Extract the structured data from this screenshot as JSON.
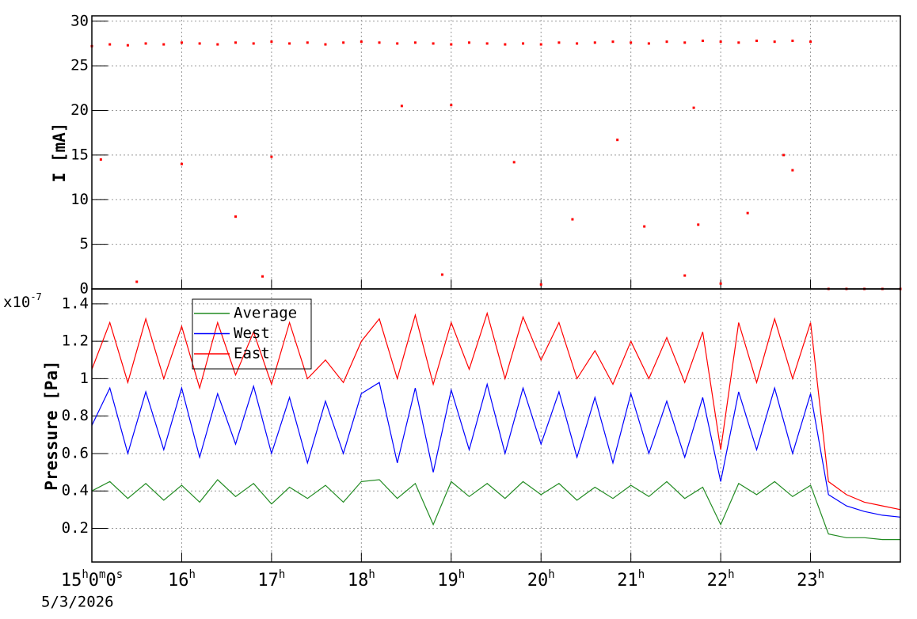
{
  "chart_data": [
    {
      "type": "scatter",
      "y_label": "I [mA]",
      "color": "#ff0000",
      "grid": true,
      "xlim": [
        15,
        24
      ],
      "xticks": [
        15,
        16,
        17,
        18,
        19,
        20,
        21,
        22,
        23
      ],
      "ylim": [
        0,
        30.6
      ],
      "yticks": [
        0,
        5,
        10,
        15,
        20,
        25,
        30
      ],
      "x": [
        15.0,
        15.2,
        15.4,
        15.6,
        15.8,
        16.0,
        16.2,
        16.4,
        16.6,
        16.8,
        17.0,
        17.2,
        17.4,
        17.6,
        17.8,
        18.0,
        18.2,
        18.4,
        18.6,
        18.8,
        19.0,
        19.2,
        19.4,
        19.6,
        19.8,
        20.0,
        20.2,
        20.4,
        20.6,
        20.8,
        21.0,
        21.2,
        21.4,
        21.6,
        21.8,
        22.0,
        22.2,
        22.4,
        22.6,
        22.8,
        23.0,
        15.1,
        16.0,
        16.6,
        17.0,
        18.45,
        19.0,
        19.7,
        20.35,
        20.85,
        21.15,
        21.7,
        21.75,
        22.3,
        22.7,
        22.8,
        15.5,
        16.9,
        18.9,
        20.0,
        21.6,
        22.0,
        23.2,
        23.4,
        23.6,
        23.8,
        24.0
      ],
      "values": [
        27.2,
        27.4,
        27.3,
        27.5,
        27.4,
        27.6,
        27.5,
        27.4,
        27.6,
        27.5,
        27.7,
        27.5,
        27.6,
        27.4,
        27.6,
        27.7,
        27.6,
        27.5,
        27.6,
        27.5,
        27.4,
        27.6,
        27.5,
        27.4,
        27.5,
        27.4,
        27.6,
        27.5,
        27.6,
        27.7,
        27.6,
        27.5,
        27.7,
        27.6,
        27.8,
        27.7,
        27.6,
        27.8,
        27.7,
        27.8,
        27.7,
        14.5,
        14.0,
        8.1,
        14.8,
        20.5,
        20.6,
        14.2,
        7.8,
        16.7,
        7.0,
        20.3,
        7.2,
        8.5,
        15.0,
        13.3,
        0.8,
        1.4,
        1.6,
        0.5,
        1.5,
        0.6,
        0,
        0,
        0,
        0,
        0
      ]
    },
    {
      "type": "line",
      "y_label": "Pressure [Pa]",
      "exponent": "x10-7",
      "grid": true,
      "legend": "top-left",
      "xlim": [
        15,
        24
      ],
      "xticks": [
        {
          "value": 15,
          "label": "15h0m0s"
        },
        {
          "value": 16,
          "label": "16h"
        },
        {
          "value": 17,
          "label": "17h"
        },
        {
          "value": 18,
          "label": "18h"
        },
        {
          "value": 19,
          "label": "19h"
        },
        {
          "value": 20,
          "label": "20h"
        },
        {
          "value": 21,
          "label": "21h"
        },
        {
          "value": 22,
          "label": "22h"
        },
        {
          "value": 23,
          "label": "23h"
        }
      ],
      "x_date": "5/3/2026",
      "ylim": [
        0.02,
        1.48
      ],
      "yticks": [
        0.2,
        0.4,
        0.6,
        0.8,
        1,
        1.2,
        1.4
      ],
      "x": [
        15.0,
        15.2,
        15.4,
        15.6,
        15.8,
        16.0,
        16.2,
        16.4,
        16.6,
        16.8,
        17.0,
        17.2,
        17.4,
        17.6,
        17.8,
        18.0,
        18.2,
        18.4,
        18.6,
        18.8,
        19.0,
        19.2,
        19.4,
        19.6,
        19.8,
        20.0,
        20.2,
        20.4,
        20.6,
        20.8,
        21.0,
        21.2,
        21.4,
        21.6,
        21.8,
        22.0,
        22.2,
        22.4,
        22.6,
        22.8,
        23.0,
        23.2,
        23.4,
        23.6,
        23.8,
        24.0
      ],
      "series": [
        {
          "name": "Average",
          "color": "#228b22",
          "values": [
            0.4,
            0.45,
            0.36,
            0.44,
            0.35,
            0.43,
            0.34,
            0.46,
            0.37,
            0.44,
            0.33,
            0.42,
            0.36,
            0.43,
            0.34,
            0.45,
            0.46,
            0.36,
            0.44,
            0.22,
            0.45,
            0.37,
            0.44,
            0.36,
            0.45,
            0.38,
            0.44,
            0.35,
            0.42,
            0.36,
            0.43,
            0.37,
            0.45,
            0.36,
            0.42,
            0.22,
            0.44,
            0.38,
            0.45,
            0.37,
            0.43,
            0.17,
            0.15,
            0.15,
            0.14,
            0.14
          ]
        },
        {
          "name": "West",
          "color": "#0000ff",
          "values": [
            0.75,
            0.95,
            0.6,
            0.93,
            0.62,
            0.95,
            0.58,
            0.92,
            0.65,
            0.96,
            0.6,
            0.9,
            0.55,
            0.88,
            0.6,
            0.92,
            0.98,
            0.55,
            0.95,
            0.5,
            0.94,
            0.62,
            0.97,
            0.6,
            0.95,
            0.65,
            0.93,
            0.58,
            0.9,
            0.55,
            0.92,
            0.6,
            0.88,
            0.58,
            0.9,
            0.45,
            0.93,
            0.62,
            0.95,
            0.6,
            0.92,
            0.38,
            0.32,
            0.29,
            0.27,
            0.26
          ]
        },
        {
          "name": "East",
          "color": "#ff0000",
          "values": [
            1.05,
            1.3,
            0.98,
            1.32,
            1.0,
            1.28,
            0.95,
            1.3,
            1.02,
            1.25,
            0.97,
            1.3,
            1.0,
            1.1,
            0.98,
            1.2,
            1.32,
            1.0,
            1.34,
            0.97,
            1.3,
            1.05,
            1.35,
            1.0,
            1.33,
            1.1,
            1.3,
            1.0,
            1.15,
            0.97,
            1.2,
            1.0,
            1.22,
            0.98,
            1.25,
            0.62,
            1.3,
            0.98,
            1.32,
            1.0,
            1.3,
            0.45,
            0.38,
            0.34,
            0.32,
            0.3
          ]
        }
      ]
    }
  ]
}
